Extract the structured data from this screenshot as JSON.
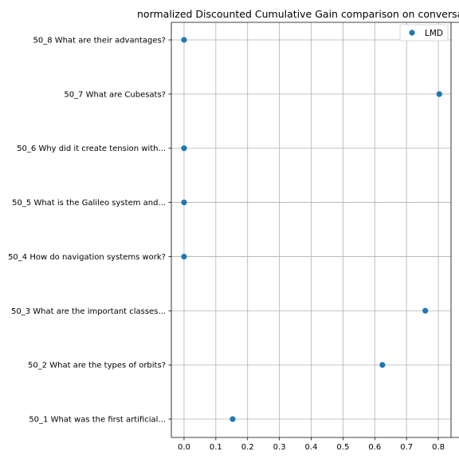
{
  "chart_data": {
    "type": "scatter",
    "title": "normalized Discounted Cumulative Gain comparison on conversatio",
    "xlabel": "",
    "ylabel": "",
    "xlim": [
      -0.04,
      0.84
    ],
    "xticks": [
      0.0,
      0.1,
      0.2,
      0.3,
      0.4,
      0.5,
      0.6,
      0.7,
      0.8
    ],
    "xtick_labels": [
      "0.0",
      "0.1",
      "0.2",
      "0.3",
      "0.4",
      "0.5",
      "0.6",
      "0.7",
      "0.8"
    ],
    "grid": true,
    "legend_position": "top-right",
    "categories": [
      "50_1 What was the first artificial...",
      "50_2 What are the types of orbits?",
      "50_3 What are the important classes...",
      "50_4 How do navigation systems work?",
      "50_5 What is the Galileo system and...",
      "50_6 Why did it create tension with...",
      "50_7 What are Cubesats?",
      "50_8 What are their advantages?"
    ],
    "series": [
      {
        "name": "LMD",
        "color": "#1f77b4",
        "values": [
          0.153,
          0.624,
          0.759,
          0.0,
          0.0,
          0.0,
          0.803,
          0.0
        ]
      }
    ]
  }
}
